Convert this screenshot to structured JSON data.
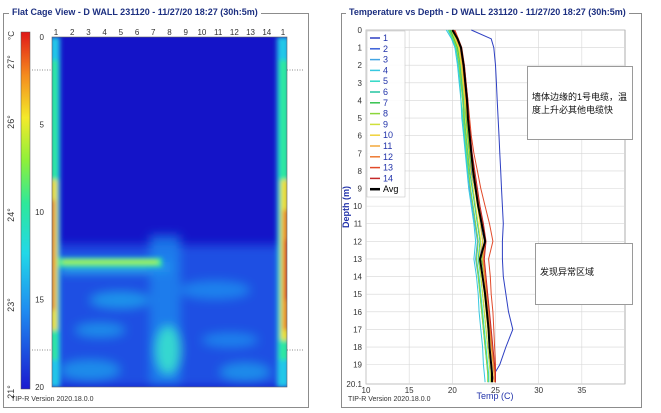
{
  "left": {
    "title": "Flat Cage View - D WALL 231120 - 11/27/20 18:27 (30h:5m)",
    "footer": "TIP-R Version 2020.18.0.0",
    "unit": "°C",
    "colorbar_ticks": [
      "27°",
      "26°",
      "24°",
      "23°",
      "21°"
    ],
    "x_ticks": [
      "1",
      "2",
      "3",
      "4",
      "5",
      "6",
      "7",
      "8",
      "9",
      "10",
      "11",
      "12",
      "13",
      "14",
      "1"
    ],
    "y_ticks": [
      "0",
      "5",
      "10",
      "15",
      "20"
    ]
  },
  "right": {
    "title": "Temperature vs Depth - D WALL 231120 - 11/27/20 18:27 (30h:5m)",
    "footer": "TIP-R Version 2020.18.0.0",
    "note1": "墙体边缘的1号电缆，温度上升必其他电缆快",
    "note2": "发现异常区域"
  },
  "chart_data": [
    {
      "type": "heatmap",
      "title": "Flat Cage View - D WALL 231120 - 11/27/20 18:27 (30h:5m)",
      "colorbar_label": "°C",
      "colorbar_range": [
        21,
        27
      ],
      "x_categories": [
        "1",
        "2",
        "3",
        "4",
        "5",
        "6",
        "7",
        "8",
        "9",
        "10",
        "11",
        "12",
        "13",
        "14",
        "1"
      ],
      "y_range": [
        0,
        20
      ],
      "y_reversed": true
    },
    {
      "type": "line",
      "title": "Temperature vs Depth - D WALL 231120 - 11/27/20 18:27 (30h:5m)",
      "xlabel": "Temp (C)",
      "ylabel": "Depth (m)",
      "xlim": [
        10,
        40
      ],
      "ylim": [
        0,
        20.1
      ],
      "y_reversed": true,
      "x_ticks": [
        "10",
        "15",
        "20",
        "25",
        "30",
        "35"
      ],
      "y_ticks": [
        "0",
        "1",
        "2",
        "3",
        "4",
        "5",
        "6",
        "7",
        "8",
        "9",
        "10",
        "11",
        "12",
        "13",
        "14",
        "15",
        "16",
        "17",
        "18",
        "19",
        "20.1"
      ],
      "legend_position": "top-left",
      "depth": [
        0,
        0.5,
        1,
        2,
        3,
        4,
        5,
        6,
        7,
        8,
        9,
        10,
        11,
        12,
        13,
        14,
        15,
        16,
        17,
        18,
        19,
        19.5,
        20
      ],
      "series": [
        {
          "name": "1",
          "color": "#2d3fc2",
          "temps": [
            22.2,
            24.5,
            24.8,
            25.0,
            25.1,
            25.2,
            25.3,
            25.4,
            25.5,
            25.6,
            25.7,
            25.8,
            25.9,
            25.8,
            25.8,
            25.9,
            26.2,
            26.5,
            27.0,
            26.2,
            25.5,
            24.9,
            24.6
          ]
        },
        {
          "name": "2",
          "color": "#3a5fd9",
          "temps": [
            20.1,
            20.5,
            20.9,
            21.2,
            21.4,
            21.5,
            21.6,
            21.8,
            22.0,
            22.2,
            22.6,
            23.0,
            23.3,
            23.5,
            23.2,
            23.5,
            23.8,
            24.1,
            24.4,
            24.6,
            24.8,
            24.9,
            25.0
          ]
        },
        {
          "name": "3",
          "color": "#42a4e3",
          "temps": [
            19.6,
            20.0,
            20.4,
            20.8,
            21.0,
            21.2,
            21.3,
            21.4,
            21.6,
            21.8,
            22.0,
            22.3,
            22.6,
            22.9,
            22.7,
            23.0,
            23.2,
            23.4,
            23.6,
            23.8,
            24.0,
            24.1,
            24.2
          ]
        },
        {
          "name": "4",
          "color": "#37c8e0",
          "temps": [
            19.3,
            19.9,
            20.3,
            20.6,
            20.8,
            21.0,
            21.1,
            21.3,
            21.5,
            21.7,
            21.9,
            22.2,
            22.5,
            22.7,
            22.5,
            22.8,
            23.0,
            23.1,
            23.3,
            23.5,
            23.6,
            23.7,
            23.8
          ]
        },
        {
          "name": "5",
          "color": "#2fd9c5",
          "temps": [
            19.5,
            20.0,
            20.4,
            20.7,
            20.9,
            21.0,
            21.2,
            21.4,
            21.6,
            21.8,
            22.1,
            22.4,
            22.7,
            23.0,
            22.8,
            23.1,
            23.3,
            23.5,
            23.7,
            23.9,
            24.1,
            24.2,
            24.2
          ]
        },
        {
          "name": "6",
          "color": "#22c4a0",
          "temps": [
            19.7,
            20.2,
            20.6,
            20.9,
            21.1,
            21.3,
            21.4,
            21.6,
            21.8,
            22.0,
            22.3,
            22.6,
            22.9,
            23.2,
            23.0,
            23.3,
            23.5,
            23.7,
            23.9,
            24.1,
            24.3,
            24.4,
            24.4
          ]
        },
        {
          "name": "7",
          "color": "#34c24e",
          "temps": [
            19.8,
            20.2,
            20.6,
            21.0,
            21.2,
            21.4,
            21.6,
            21.8,
            22.0,
            22.3,
            22.6,
            23.0,
            23.4,
            23.7,
            23.4,
            23.7,
            24.0,
            24.2,
            24.4,
            24.6,
            24.8,
            24.9,
            25.0
          ]
        },
        {
          "name": "8",
          "color": "#8bd63a",
          "temps": [
            19.6,
            20.1,
            20.5,
            20.8,
            21.0,
            21.2,
            21.3,
            21.5,
            21.7,
            21.9,
            22.1,
            22.4,
            22.7,
            23.0,
            22.8,
            23.0,
            23.2,
            23.4,
            23.6,
            23.8,
            24.0,
            24.1,
            24.1
          ]
        },
        {
          "name": "9",
          "color": "#cfe03a",
          "temps": [
            19.9,
            20.3,
            20.7,
            21.0,
            21.2,
            21.4,
            21.5,
            21.7,
            21.9,
            22.1,
            22.4,
            22.7,
            23.0,
            23.3,
            23.1,
            23.3,
            23.5,
            23.7,
            23.9,
            24.1,
            24.3,
            24.4,
            24.4
          ]
        },
        {
          "name": "10",
          "color": "#f0d23a",
          "temps": [
            20.0,
            20.4,
            20.8,
            21.1,
            21.3,
            21.5,
            21.7,
            21.9,
            22.1,
            22.3,
            22.6,
            22.9,
            23.2,
            23.5,
            23.3,
            23.5,
            23.7,
            23.9,
            24.1,
            24.3,
            24.5,
            24.6,
            24.6
          ]
        },
        {
          "name": "11",
          "color": "#f2a93a",
          "temps": [
            20.2,
            20.6,
            21.0,
            21.3,
            21.5,
            21.7,
            21.8,
            22.0,
            22.2,
            22.5,
            22.8,
            23.1,
            23.4,
            23.7,
            23.5,
            23.7,
            23.9,
            24.1,
            24.3,
            24.5,
            24.7,
            24.8,
            24.8
          ]
        },
        {
          "name": "12",
          "color": "#ee7a32",
          "temps": [
            20.1,
            20.5,
            20.9,
            21.2,
            21.4,
            21.6,
            21.8,
            22.0,
            22.2,
            22.5,
            22.8,
            23.1,
            23.5,
            23.8,
            23.6,
            23.8,
            24.0,
            24.2,
            24.4,
            24.6,
            24.8,
            24.9,
            24.9
          ]
        },
        {
          "name": "13",
          "color": "#e24a2a",
          "temps": [
            20.3,
            20.7,
            21.1,
            21.4,
            21.6,
            21.8,
            22.0,
            22.2,
            22.5,
            22.9,
            23.3,
            23.8,
            24.3,
            24.7,
            24.2,
            24.4,
            24.5,
            24.7,
            24.8,
            24.9,
            25.0,
            25.0,
            25.0
          ]
        },
        {
          "name": "14",
          "color": "#c4282a",
          "temps": [
            20.2,
            20.6,
            21.0,
            21.4,
            21.6,
            21.8,
            21.9,
            22.1,
            22.3,
            22.6,
            22.9,
            23.2,
            23.6,
            23.9,
            23.7,
            23.9,
            24.1,
            24.3,
            24.5,
            24.7,
            24.9,
            25.0,
            25.0
          ]
        },
        {
          "name": "Avg",
          "color": "#000000",
          "temps": [
            20.0,
            20.6,
            21.0,
            21.3,
            21.5,
            21.7,
            21.8,
            22.0,
            22.2,
            22.4,
            22.7,
            23.0,
            23.4,
            23.8,
            23.2,
            23.5,
            23.8,
            24.0,
            24.2,
            24.3,
            24.5,
            24.6,
            24.6
          ]
        }
      ]
    }
  ]
}
